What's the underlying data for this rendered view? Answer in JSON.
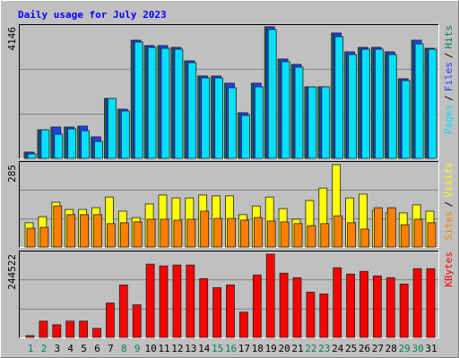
{
  "chart_data": [
    {
      "type": "bar",
      "title": "Daily usage for July 2023",
      "ylim": [
        0,
        4146
      ],
      "yticks": [
        4146
      ],
      "legend_separator": "/",
      "series": [
        {
          "name": "Pages",
          "color": "#00e0ff",
          "values": [
            141,
            903,
            761,
            931,
            874,
            536,
            1890,
            1495,
            3667,
            3497,
            3469,
            3441,
            3018,
            2538,
            2538,
            2228,
            1354,
            2256,
            4061,
            3046,
            2877,
            2256,
            2256,
            3836,
            3272,
            3441,
            3441,
            3272,
            2454,
            3610,
            3441
          ]
        },
        {
          "name": "Files",
          "color": "#2040ff",
          "values": [
            197,
            903,
            987,
            987,
            1015,
            677,
            1890,
            1551,
            3723,
            3554,
            3554,
            3497,
            3074,
            2595,
            2595,
            2369,
            1438,
            2369,
            4146,
            3131,
            2962,
            2256,
            2256,
            3949,
            3356,
            3497,
            3497,
            3356,
            2510,
            3723,
            3469
          ]
        },
        {
          "name": "Hits",
          "color": "#00805c",
          "values": [
            197,
            903,
            987,
            987,
            1015,
            677,
            1890,
            1551,
            3723,
            3554,
            3554,
            3497,
            3074,
            2595,
            2595,
            2369,
            1438,
            2369,
            4146,
            3131,
            2962,
            2256,
            2256,
            3949,
            3356,
            3497,
            3497,
            3356,
            2510,
            3723,
            3469
          ]
        }
      ]
    },
    {
      "type": "bar",
      "ylim": [
        0,
        285
      ],
      "yticks": [
        285
      ],
      "legend_separator": "/",
      "series": [
        {
          "name": "Sites",
          "color": "#ff8000",
          "values": [
            65,
            68,
            142,
            112,
            112,
            112,
            81,
            84,
            87,
            96,
            96,
            93,
            96,
            124,
            99,
            99,
            93,
            102,
            90,
            87,
            81,
            74,
            81,
            108,
            84,
            62,
            136,
            136,
            77,
            96,
            84
          ]
        },
        {
          "name": "Visits",
          "color": "#ffff00",
          "values": [
            84,
            105,
            155,
            130,
            130,
            136,
            173,
            124,
            102,
            149,
            180,
            170,
            170,
            180,
            177,
            177,
            112,
            142,
            173,
            133,
            96,
            161,
            204,
            285,
            170,
            183,
            127,
            118,
            118,
            146,
            124
          ]
        }
      ]
    },
    {
      "type": "bar",
      "ylim": [
        0,
        244522
      ],
      "yticks": [
        244522
      ],
      "categories": [
        "1",
        "2",
        "3",
        "4",
        "5",
        "6",
        "7",
        "8",
        "9",
        "10",
        "11",
        "12",
        "13",
        "14",
        "15",
        "16",
        "17",
        "18",
        "19",
        "20",
        "21",
        "22",
        "23",
        "24",
        "25",
        "26",
        "27",
        "28",
        "29",
        "30",
        "31"
      ],
      "category_colors": [
        "#00805c",
        "#00805c",
        "#000000",
        "#000000",
        "#000000",
        "#000000",
        "#000000",
        "#00805c",
        "#00805c",
        "#000000",
        "#000000",
        "#000000",
        "#000000",
        "#000000",
        "#00805c",
        "#00805c",
        "#000000",
        "#000000",
        "#000000",
        "#000000",
        "#000000",
        "#00805c",
        "#00805c",
        "#000000",
        "#000000",
        "#000000",
        "#000000",
        "#000000",
        "#00805c",
        "#00805c",
        "#000000"
      ],
      "series": [
        {
          "name": "KBytes",
          "color": "#ff0000",
          "values": [
            5316,
            47842,
            37210,
            47842,
            47842,
            26579,
            101000,
            154156,
            95683,
            215287,
            209971,
            212629,
            212629,
            172759,
            146183,
            154156,
            74420,
            183391,
            244522,
            188707,
            175418,
            132894,
            127578,
            204655,
            186049,
            194023,
            180734,
            175418,
            156813,
            201997,
            201997
          ]
        }
      ]
    }
  ]
}
